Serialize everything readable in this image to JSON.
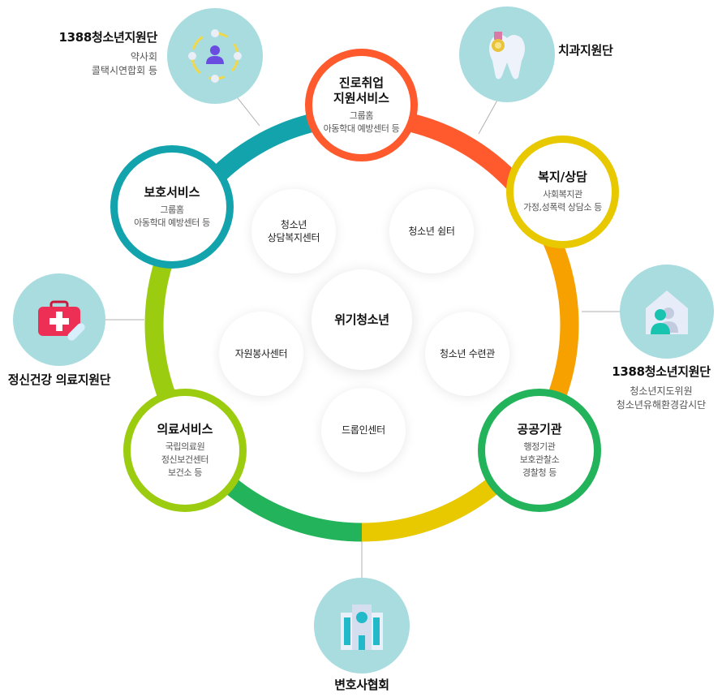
{
  "ring": {
    "segment_colors": [
      "#ff5a2e",
      "#f6a100",
      "#e8c900",
      "#23b35a",
      "#9ccc10",
      "#13a3ad"
    ]
  },
  "nodes": {
    "career": {
      "title": "진로취업\n지원서비스",
      "sub": "그룹홈\n아동학대 예방센터 등",
      "color": "#ff5a2e"
    },
    "welfare": {
      "title": "복지/상담",
      "sub": "사회복지관\n가정,성폭력 상담소 등",
      "color": "#e8c900"
    },
    "public": {
      "title": "공공기관",
      "sub": "행정기관\n보호관찰소\n경찰청 등",
      "color": "#23b35a"
    },
    "medical": {
      "title": "의료서비스",
      "sub": "국립의료원\n정신보건센터\n보건소 등",
      "color": "#9ccc10"
    },
    "protect": {
      "title": "보호서비스",
      "sub": "그룹홈\n아동학대 예방센터 등",
      "color": "#13a3ad"
    }
  },
  "inner": {
    "center": "위기청소년",
    "counsel": "청소년\n상담복지센터",
    "shelter": "청소년 쉼터",
    "training": "청소년 수련관",
    "dropin": "드롭인센터",
    "volunteer": "자원봉사센터"
  },
  "external": {
    "top_left": {
      "title": "1388청소년지원단",
      "sub": "약사회\n콜택시연합회 등",
      "icon": "people-network-icon"
    },
    "top_right": {
      "title": "치과지원단",
      "icon": "tooth-medal-icon"
    },
    "right": {
      "title": "1388청소년지원단",
      "sub": "청소년지도위원\n청소년유해환경감시단",
      "icon": "house-person-icon"
    },
    "left": {
      "title": "정신건강 의료지원단",
      "icon": "first-aid-kit-icon"
    },
    "bottom": {
      "title": "변호사협회",
      "icon": "building-icon"
    }
  }
}
